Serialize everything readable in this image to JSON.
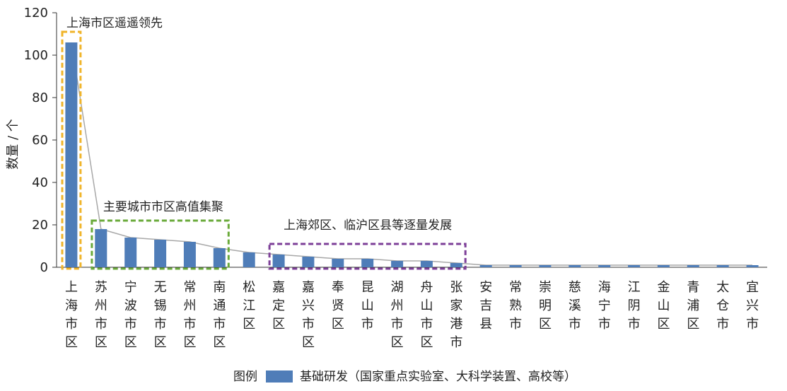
{
  "chart_data": {
    "type": "bar",
    "ylabel": "数量 / 个",
    "ylim": [
      0,
      120
    ],
    "yticks": [
      0,
      20,
      40,
      60,
      80,
      100,
      120
    ],
    "grid": false,
    "categories": [
      "上海市区",
      "苏州市区",
      "宁波市区",
      "无锡市区",
      "常州市区",
      "南通市区",
      "松江区",
      "嘉定区",
      "嘉兴市区",
      "奉贤区",
      "昆山市",
      "湖州市区",
      "舟山市区",
      "张家港市",
      "安吉县",
      "常熟市",
      "崇明区",
      "慈溪市",
      "海宁市",
      "江阴市",
      "金山区",
      "青浦区",
      "太仓市",
      "宜兴市"
    ],
    "series": [
      {
        "name": "基础研发（国家重点实验室、大科学装置、高校等）",
        "color": "#4f7db8",
        "values": [
          106,
          18,
          14,
          13,
          12,
          9,
          7,
          6,
          5,
          4,
          4,
          3,
          3,
          2,
          1,
          1,
          1,
          1,
          1,
          1,
          1,
          1,
          1,
          1
        ]
      }
    ],
    "trend_line": {
      "color": "#a8a8a8"
    },
    "annotations": [
      {
        "text": "上海市区遥遥领先",
        "color": "#f0b429",
        "from": 0,
        "to": 0
      },
      {
        "text": "主要城市市区高值集聚",
        "color": "#6aaa3a",
        "from": 1,
        "to": 5
      },
      {
        "text": "上海郊区、临沪区县等逐量发展",
        "color": "#7d3f98",
        "from": 7,
        "to": 13
      }
    ],
    "legend": {
      "title": "图例",
      "label": "基础研发（国家重点实验室、大科学装置、高校等）",
      "position": "bottom-center"
    }
  }
}
